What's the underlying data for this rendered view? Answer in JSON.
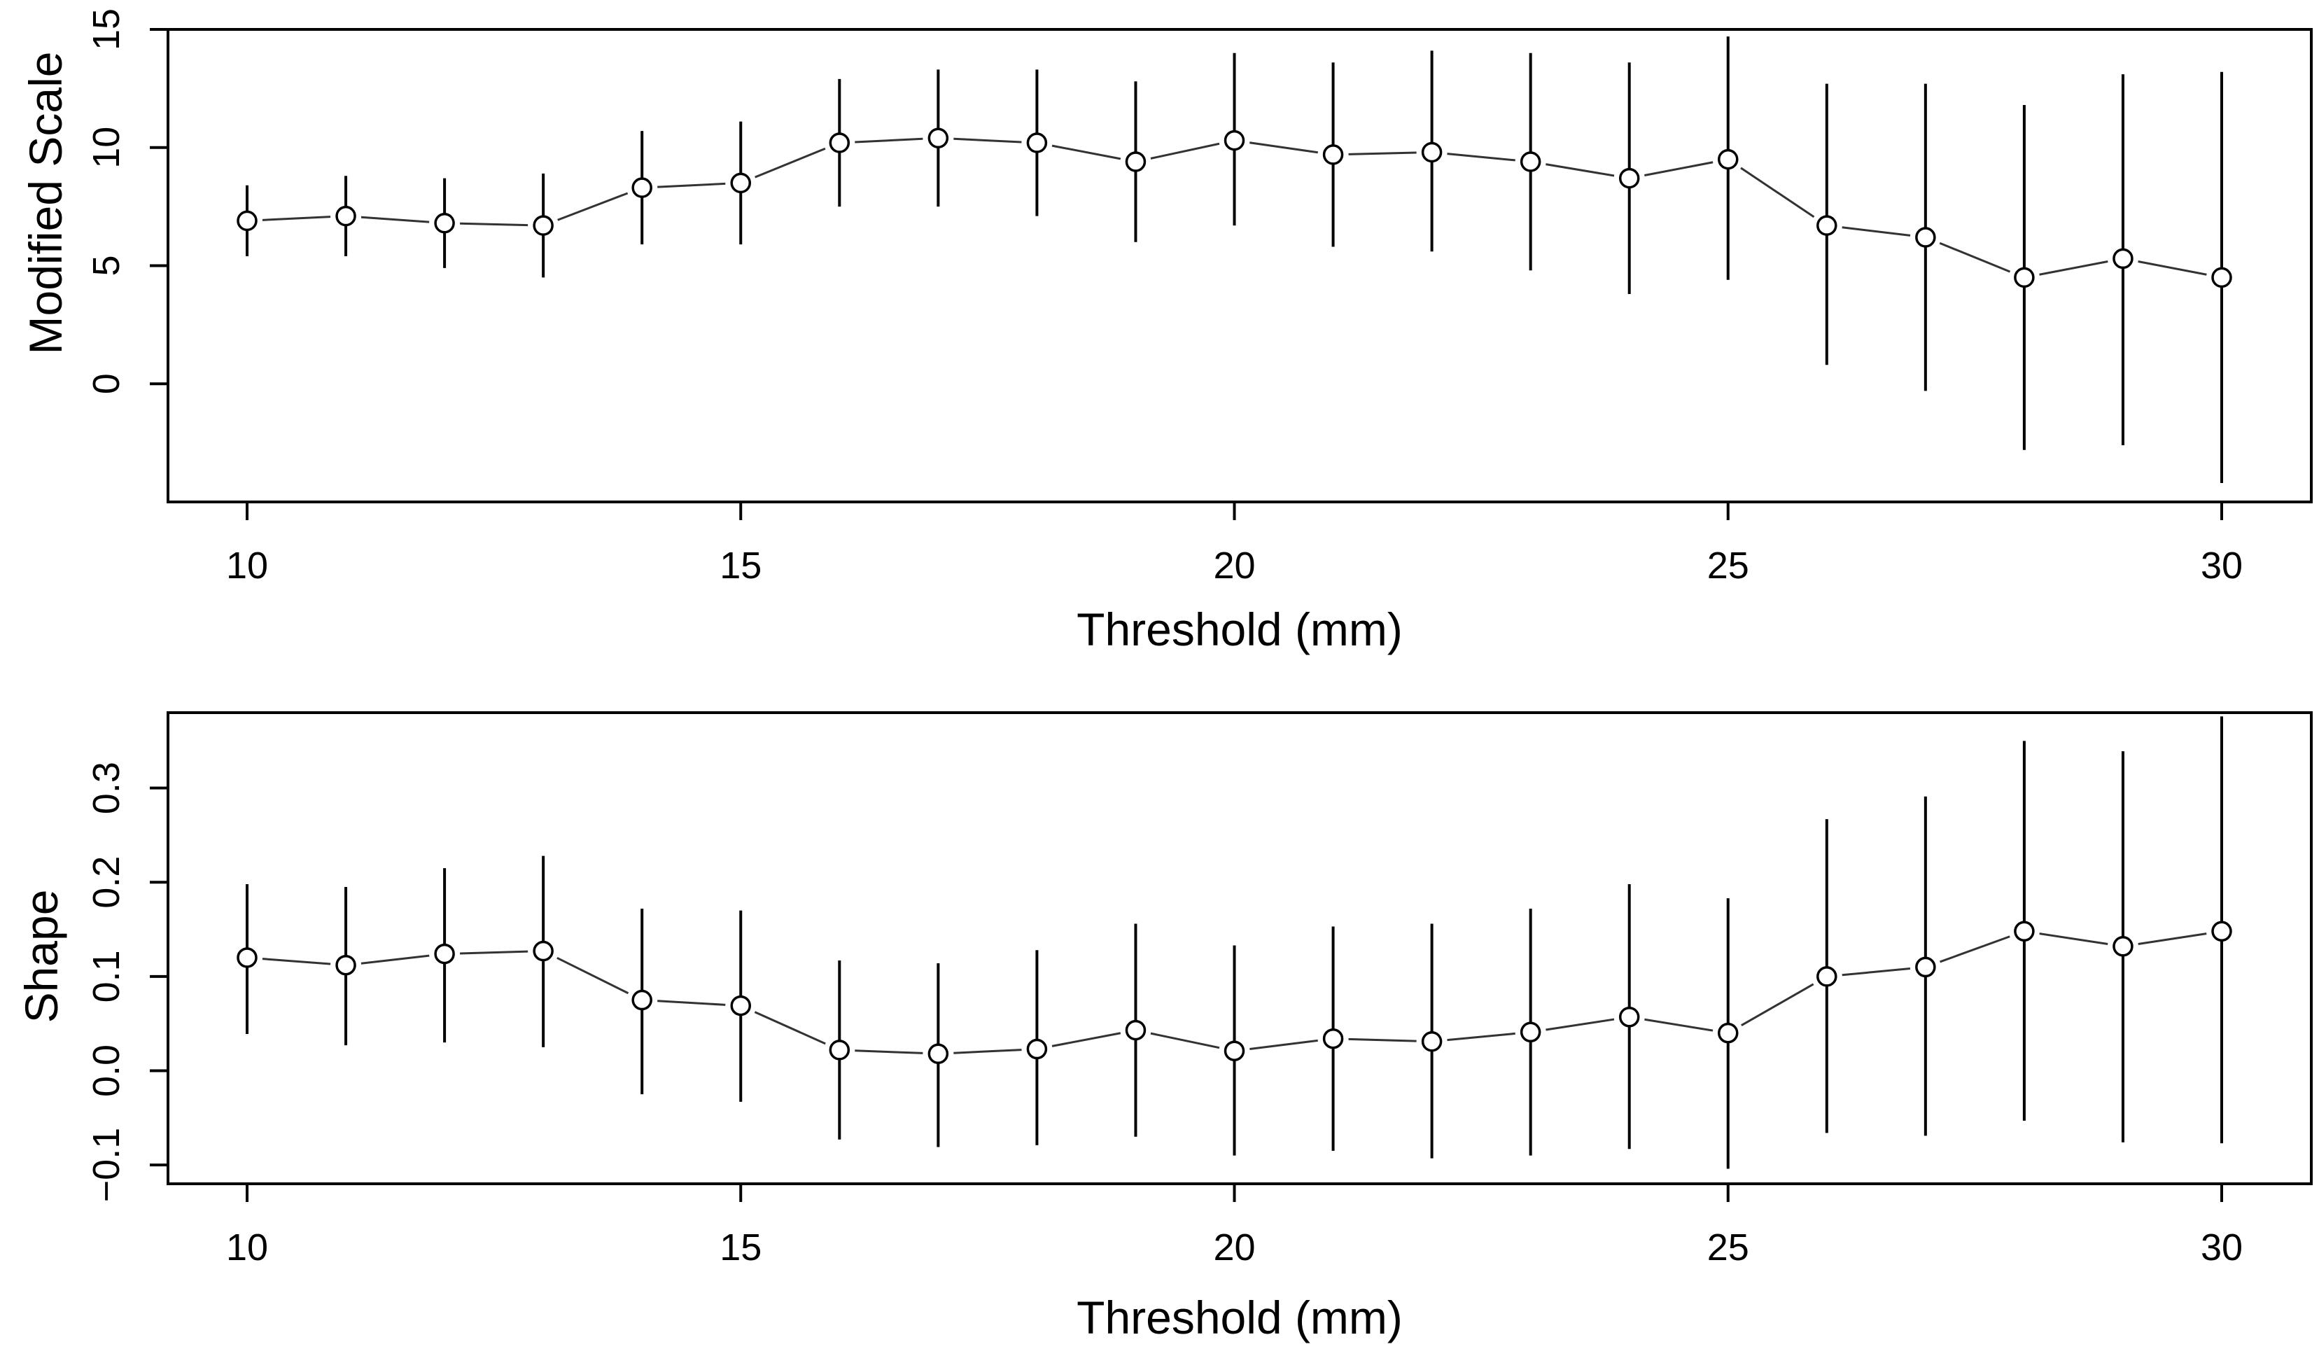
{
  "chart_data": [
    {
      "type": "line",
      "panel": "top",
      "xlabel": "Threshold (mm)",
      "ylabel": "Modified Scale",
      "xlim": [
        10,
        30
      ],
      "ylim": [
        -5,
        15
      ],
      "xticks": [
        10,
        15,
        20,
        25,
        30
      ],
      "yticks": [
        0,
        5,
        10,
        15
      ],
      "x": [
        10,
        11,
        12,
        13,
        14,
        15,
        16,
        17,
        18,
        19,
        20,
        21,
        22,
        23,
        24,
        25,
        26,
        27,
        28,
        29,
        30
      ],
      "series": [
        {
          "name": "Modified Scale",
          "values": [
            6.9,
            7.1,
            6.8,
            6.7,
            8.3,
            8.5,
            10.2,
            10.4,
            10.2,
            9.4,
            10.3,
            9.7,
            9.8,
            9.4,
            8.7,
            9.5,
            6.7,
            6.2,
            4.5,
            5.3,
            4.5
          ],
          "lower": [
            5.4,
            5.4,
            4.9,
            4.5,
            5.9,
            5.9,
            7.5,
            7.5,
            7.1,
            6.0,
            6.7,
            5.8,
            5.6,
            4.8,
            3.8,
            4.4,
            0.8,
            -0.3,
            -2.8,
            -2.6,
            -4.2
          ],
          "upper": [
            8.4,
            8.8,
            8.7,
            8.9,
            10.7,
            11.1,
            12.9,
            13.3,
            13.3,
            12.8,
            14.0,
            13.6,
            14.1,
            14.0,
            13.6,
            14.7,
            12.7,
            12.7,
            11.8,
            13.1,
            13.2
          ]
        }
      ]
    },
    {
      "type": "line",
      "panel": "bottom",
      "xlabel": "Threshold (mm)",
      "ylabel": "Shape",
      "xlim": [
        10,
        30
      ],
      "ylim": [
        -0.12,
        0.38
      ],
      "xticks": [
        10,
        15,
        20,
        25,
        30
      ],
      "yticks": [
        -0.1,
        0.0,
        0.1,
        0.2,
        0.3
      ],
      "ytick_labels": [
        "−0.1",
        "0.0",
        "0.1",
        "0.2",
        "0.3"
      ],
      "x": [
        10,
        11,
        12,
        13,
        14,
        15,
        16,
        17,
        18,
        19,
        20,
        21,
        22,
        23,
        24,
        25,
        26,
        27,
        28,
        29,
        30
      ],
      "series": [
        {
          "name": "Shape",
          "values": [
            0.12,
            0.112,
            0.124,
            0.127,
            0.075,
            0.069,
            0.022,
            0.018,
            0.023,
            0.043,
            0.021,
            0.034,
            0.031,
            0.041,
            0.057,
            0.04,
            0.1,
            0.11,
            0.148,
            0.132,
            0.148
          ],
          "lower": [
            0.039,
            0.027,
            0.03,
            0.025,
            -0.025,
            -0.033,
            -0.073,
            -0.081,
            -0.079,
            -0.07,
            -0.09,
            -0.085,
            -0.093,
            -0.09,
            -0.083,
            -0.104,
            -0.066,
            -0.069,
            -0.053,
            -0.076,
            -0.077
          ],
          "upper": [
            0.198,
            0.195,
            0.215,
            0.228,
            0.172,
            0.17,
            0.117,
            0.114,
            0.128,
            0.156,
            0.133,
            0.153,
            0.156,
            0.172,
            0.198,
            0.183,
            0.267,
            0.291,
            0.35,
            0.339,
            0.376
          ]
        }
      ]
    }
  ]
}
